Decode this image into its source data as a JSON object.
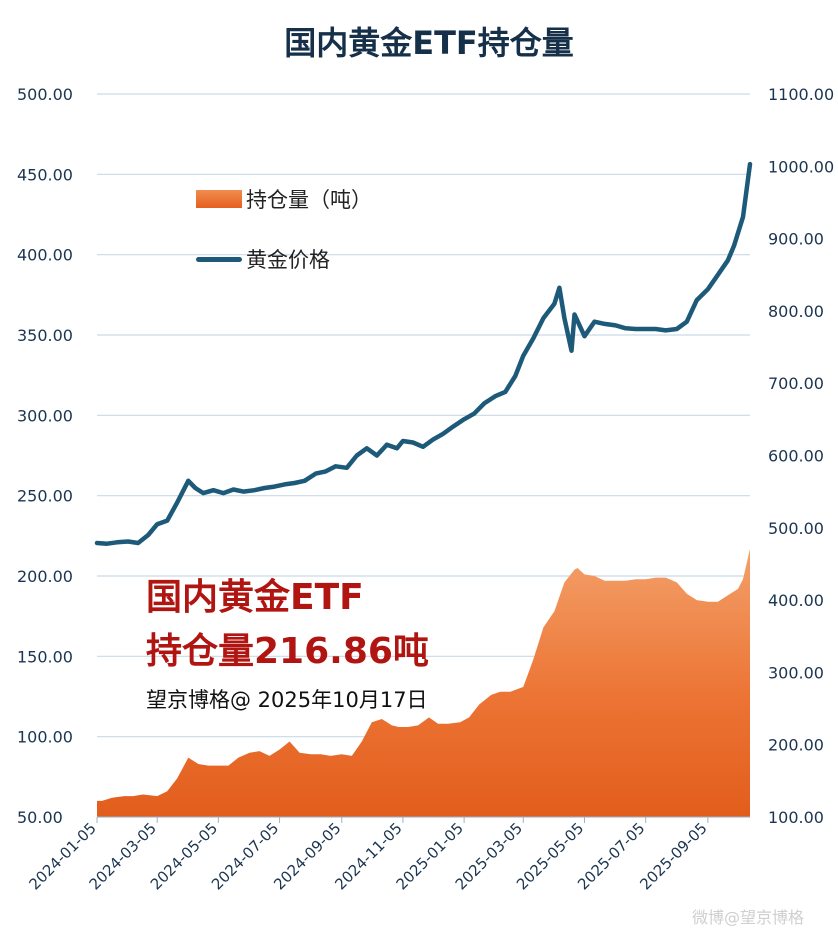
{
  "chart_data": {
    "type": "area+line",
    "title": "国内黄金ETF持仓量",
    "legend": {
      "position": "top-left",
      "items": [
        {
          "label": "持仓量（吨）",
          "marker": "area",
          "color": "#e8692a"
        },
        {
          "label": "黄金价格",
          "marker": "line",
          "color": "#1d5a7a"
        }
      ]
    },
    "annotation": {
      "line1": "国内黄金ETF",
      "line2": "持仓量216.86吨",
      "credit": "望京博格@ 2025年10月17日"
    },
    "watermark": "微博@望京博格",
    "axes": {
      "y_left": {
        "min": 50,
        "max": 500,
        "ticks": [
          "50.00",
          "100.00",
          "150.00",
          "200.00",
          "250.00",
          "300.00",
          "350.00",
          "400.00",
          "450.00",
          "500.00"
        ]
      },
      "y_right": {
        "min": 100,
        "max": 1100,
        "ticks": [
          "100.00",
          "200.00",
          "300.00",
          "400.00",
          "500.00",
          "600.00",
          "700.00",
          "800.00",
          "900.00",
          "1000.00",
          "1100.00"
        ]
      },
      "x": {
        "min": "2024-01-05",
        "max": "2025-10-17",
        "ticks": [
          "2024-01-05",
          "2024-03-05",
          "2024-05-05",
          "2024-07-05",
          "2024-09-05",
          "2024-11-05",
          "2025-01-05",
          "2025-03-05",
          "2025-05-05",
          "2025-07-05",
          "2025-09-05"
        ]
      }
    },
    "grid": true,
    "series": [
      {
        "name": "持仓量（吨）",
        "axis": "left",
        "type": "area",
        "x": [
          "2024-01-05",
          "2024-01-10",
          "2024-01-20",
          "2024-02-01",
          "2024-02-10",
          "2024-02-20",
          "2024-03-05",
          "2024-03-15",
          "2024-03-25",
          "2024-04-05",
          "2024-04-15",
          "2024-04-25",
          "2024-05-05",
          "2024-05-15",
          "2024-05-25",
          "2024-06-05",
          "2024-06-15",
          "2024-06-25",
          "2024-07-05",
          "2024-07-15",
          "2024-07-25",
          "2024-08-05",
          "2024-08-15",
          "2024-08-25",
          "2024-09-05",
          "2024-09-15",
          "2024-09-25",
          "2024-10-05",
          "2024-10-15",
          "2024-10-25",
          "2024-11-01",
          "2024-11-10",
          "2024-11-20",
          "2024-12-01",
          "2024-12-10",
          "2024-12-20",
          "2025-01-01",
          "2025-01-10",
          "2025-01-20",
          "2025-02-01",
          "2025-02-10",
          "2025-02-20",
          "2025-03-05",
          "2025-03-15",
          "2025-03-25",
          "2025-04-05",
          "2025-04-15",
          "2025-04-25",
          "2025-04-28",
          "2025-05-05",
          "2025-05-15",
          "2025-05-25",
          "2025-06-05",
          "2025-06-15",
          "2025-06-25",
          "2025-07-05",
          "2025-07-15",
          "2025-07-25",
          "2025-08-05",
          "2025-08-15",
          "2025-08-25",
          "2025-09-05",
          "2025-09-15",
          "2025-09-25",
          "2025-10-05",
          "2025-10-10",
          "2025-10-17"
        ],
        "values": [
          60,
          60,
          62,
          63,
          63,
          64,
          63,
          66,
          74,
          87,
          83,
          82,
          82,
          82,
          87,
          90,
          91,
          88,
          92,
          97,
          90,
          89,
          89,
          88,
          89,
          88,
          97,
          109,
          111,
          107,
          106,
          106,
          107,
          112,
          108,
          108,
          109,
          112,
          120,
          126,
          128,
          128,
          131,
          148,
          168,
          178,
          196,
          204,
          205,
          201,
          200,
          197,
          197,
          197,
          198,
          198,
          199,
          199,
          196,
          189,
          185,
          184,
          184,
          188,
          192,
          198,
          216.86
        ]
      },
      {
        "name": "黄金价格",
        "axis": "right",
        "type": "line",
        "x": [
          "2024-01-05",
          "2024-01-15",
          "2024-01-25",
          "2024-02-05",
          "2024-02-15",
          "2024-02-25",
          "2024-03-05",
          "2024-03-15",
          "2024-03-25",
          "2024-04-05",
          "2024-04-12",
          "2024-04-20",
          "2024-04-30",
          "2024-05-10",
          "2024-05-20",
          "2024-05-30",
          "2024-06-10",
          "2024-06-20",
          "2024-06-30",
          "2024-07-10",
          "2024-07-20",
          "2024-07-30",
          "2024-08-10",
          "2024-08-20",
          "2024-08-30",
          "2024-09-10",
          "2024-09-20",
          "2024-09-30",
          "2024-10-10",
          "2024-10-20",
          "2024-10-30",
          "2024-11-05",
          "2024-11-15",
          "2024-11-25",
          "2024-12-05",
          "2024-12-15",
          "2024-12-25",
          "2025-01-05",
          "2025-01-15",
          "2025-01-25",
          "2025-02-05",
          "2025-02-15",
          "2025-02-25",
          "2025-03-05",
          "2025-03-15",
          "2025-03-25",
          "2025-04-05",
          "2025-04-10",
          "2025-04-15",
          "2025-04-22",
          "2025-04-25",
          "2025-05-05",
          "2025-05-15",
          "2025-05-25",
          "2025-06-05",
          "2025-06-15",
          "2025-06-25",
          "2025-07-05",
          "2025-07-15",
          "2025-07-25",
          "2025-08-05",
          "2025-08-15",
          "2025-08-25",
          "2025-09-05",
          "2025-09-15",
          "2025-09-25",
          "2025-10-01",
          "2025-10-10",
          "2025-10-17"
        ],
        "values": [
          479,
          478,
          480,
          481,
          479,
          490,
          505,
          510,
          535,
          565,
          555,
          548,
          552,
          548,
          553,
          550,
          552,
          555,
          557,
          560,
          562,
          565,
          575,
          578,
          585,
          583,
          600,
          610,
          600,
          615,
          610,
          620,
          618,
          612,
          622,
          630,
          640,
          650,
          658,
          672,
          682,
          688,
          710,
          738,
          762,
          790,
          810,
          832,
          790,
          745,
          795,
          765,
          785,
          782,
          780,
          776,
          775,
          775,
          775,
          773,
          775,
          785,
          815,
          830,
          850,
          870,
          890,
          930,
          1003
        ]
      }
    ]
  }
}
